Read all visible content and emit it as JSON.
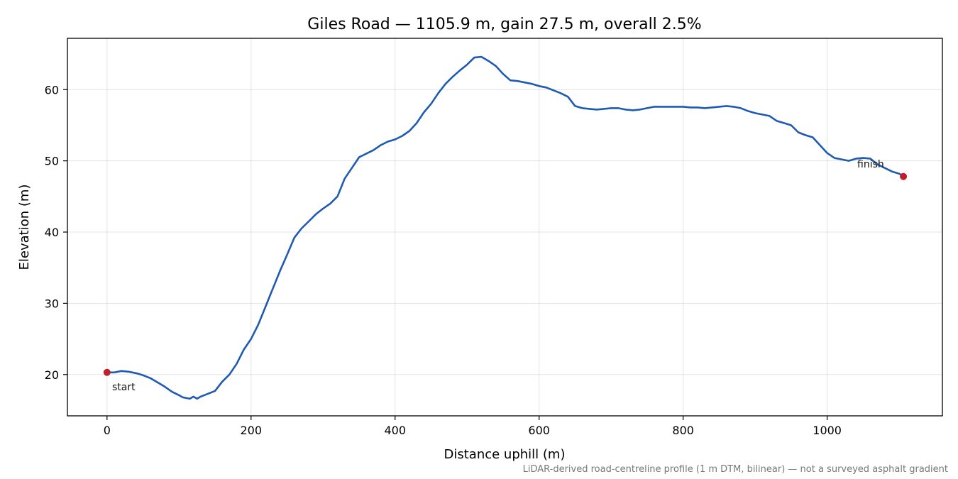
{
  "chart_data": {
    "type": "line",
    "title": "Giles Road — 1105.9 m, gain 27.5 m, overall 2.5%",
    "xlabel": "Distance uphill (m)",
    "ylabel": "Elevation (m)",
    "xlim": [
      -55,
      1160
    ],
    "ylim": [
      14.2,
      67.2
    ],
    "xticks": [
      0,
      200,
      400,
      600,
      800,
      1000
    ],
    "yticks": [
      20,
      30,
      40,
      50,
      60
    ],
    "grid": true,
    "line_color": "#1f5bb0",
    "marker_color": "#c0202e",
    "footnote": "LiDAR-derived road-centreline profile (1 m DTM, bilinear) — not a surveyed asphalt gradient",
    "series": [
      {
        "x": [
          0,
          10,
          20,
          30,
          40,
          50,
          60,
          70,
          80,
          90,
          100,
          105,
          110,
          115,
          120,
          125,
          130,
          140,
          150,
          160,
          170,
          180,
          190,
          200,
          210,
          220,
          230,
          240,
          250,
          260,
          270,
          280,
          290,
          300,
          310,
          320,
          330,
          340,
          350,
          360,
          370,
          380,
          390,
          400,
          410,
          420,
          430,
          440,
          450,
          460,
          470,
          480,
          490,
          500,
          510,
          520,
          530,
          540,
          550,
          560,
          570,
          580,
          590,
          600,
          610,
          620,
          630,
          640,
          650,
          660,
          670,
          680,
          690,
          700,
          710,
          720,
          730,
          740,
          750,
          760,
          770,
          780,
          790,
          800,
          810,
          820,
          830,
          840,
          850,
          860,
          870,
          880,
          890,
          900,
          910,
          920,
          930,
          940,
          950,
          960,
          970,
          980,
          990,
          1000,
          1010,
          1020,
          1030,
          1040,
          1050,
          1060,
          1070,
          1080,
          1090,
          1100,
          1105.9
        ],
        "y": [
          20.3,
          20.3,
          20.5,
          20.4,
          20.2,
          19.9,
          19.5,
          18.9,
          18.3,
          17.6,
          17.1,
          16.8,
          16.7,
          16.6,
          16.9,
          16.6,
          16.9,
          17.3,
          17.7,
          19.0,
          20.0,
          21.5,
          23.5,
          25.0,
          27.0,
          29.5,
          32.0,
          34.5,
          36.8,
          39.2,
          40.5,
          41.5,
          42.5,
          43.3,
          44.0,
          45.0,
          47.5,
          49.0,
          50.5,
          51.0,
          51.5,
          52.2,
          52.7,
          53.0,
          53.5,
          54.2,
          55.3,
          56.8,
          58.0,
          59.5,
          60.8,
          61.8,
          62.7,
          63.5,
          64.5,
          64.6,
          64.0,
          63.3,
          62.2,
          61.3,
          61.2,
          61.0,
          60.8,
          60.5,
          60.3,
          59.9,
          59.5,
          59.0,
          57.7,
          57.4,
          57.3,
          57.2,
          57.3,
          57.4,
          57.4,
          57.2,
          57.1,
          57.2,
          57.4,
          57.6,
          57.6,
          57.6,
          57.6,
          57.6,
          57.5,
          57.5,
          57.4,
          57.5,
          57.6,
          57.7,
          57.6,
          57.4,
          57.0,
          56.7,
          56.5,
          56.3,
          55.6,
          55.3,
          55.0,
          54.0,
          53.6,
          53.3,
          52.2,
          51.1,
          50.4,
          50.2,
          50.0,
          50.3,
          50.4,
          50.3,
          49.5,
          49.0,
          48.5,
          48.2,
          47.8
        ],
        "start_label": "start",
        "finish_label": "finish"
      }
    ]
  }
}
